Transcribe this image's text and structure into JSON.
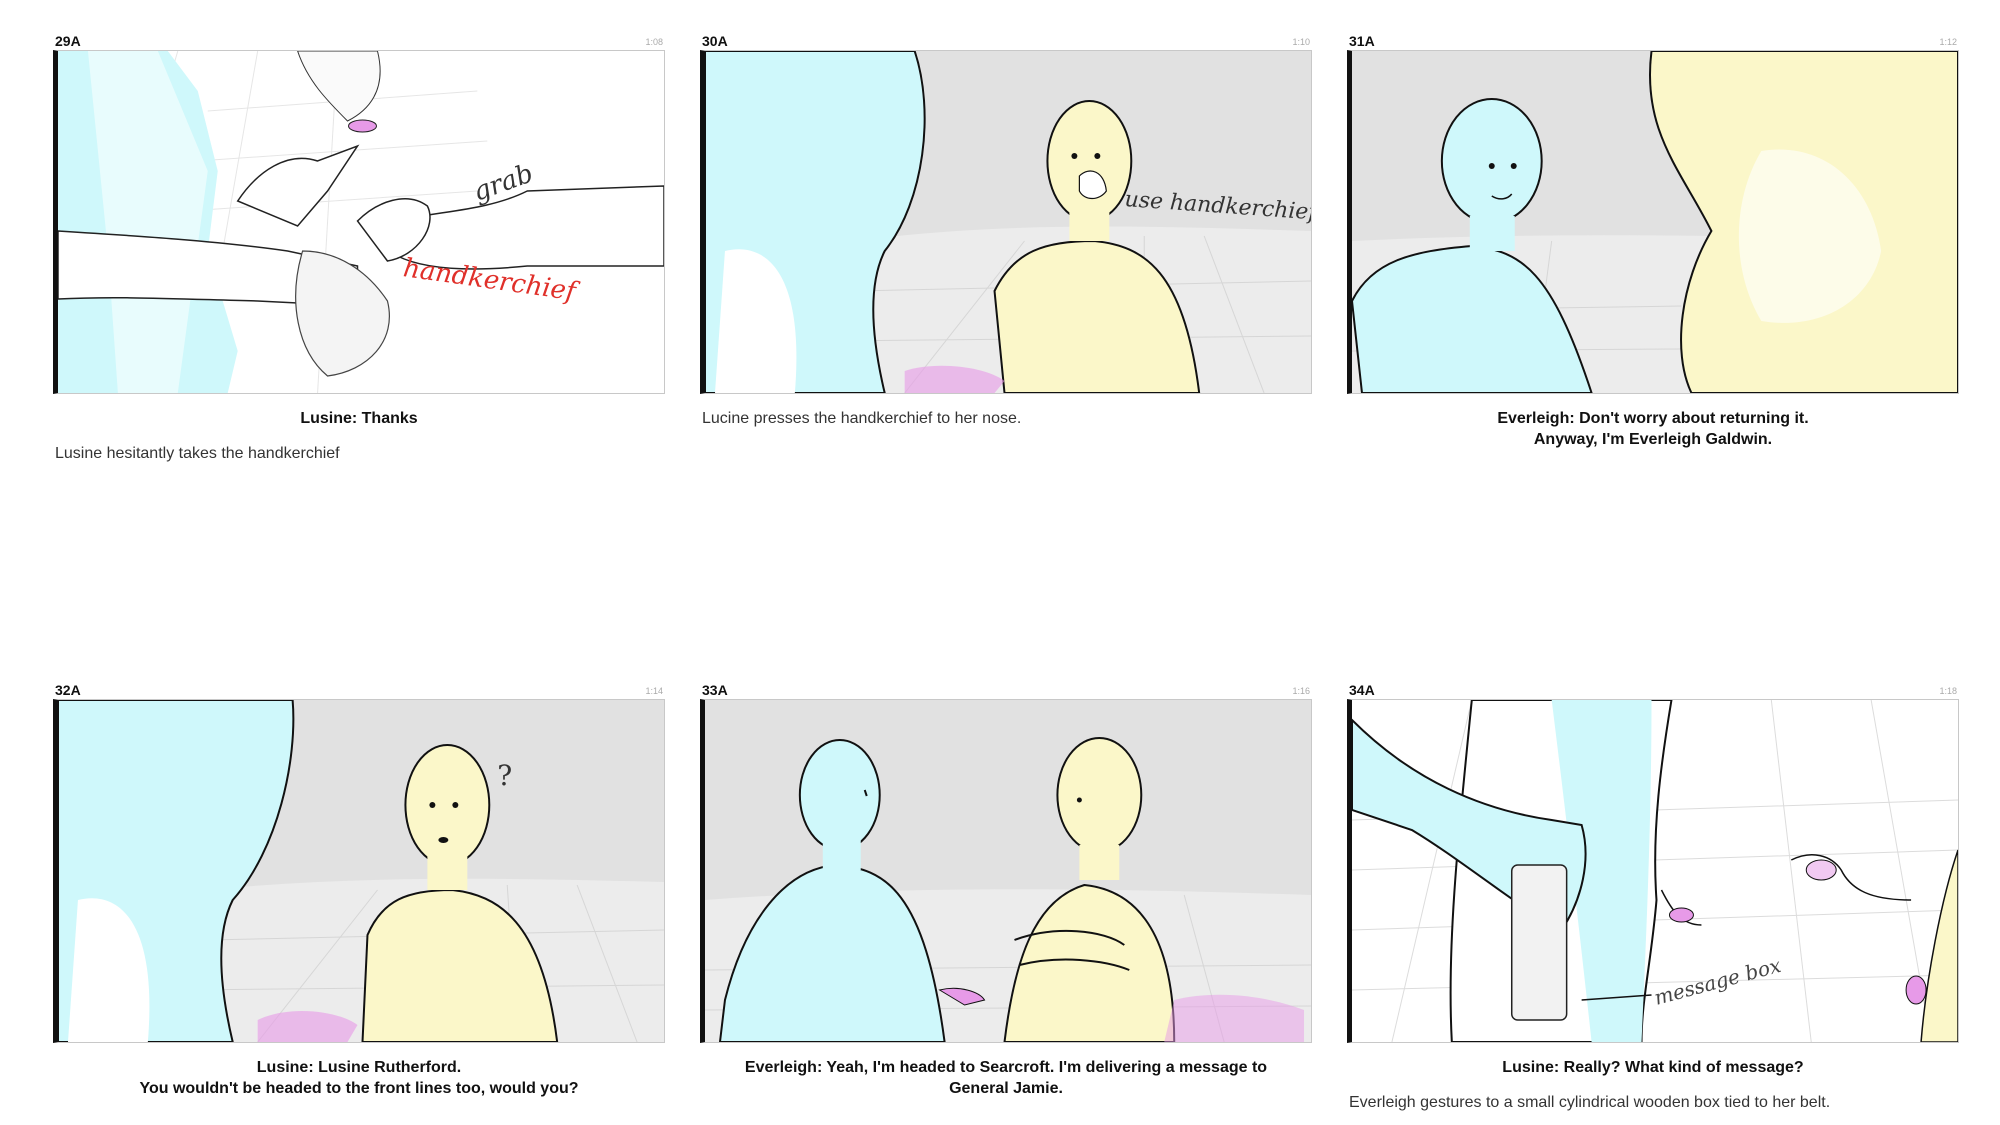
{
  "panels": [
    {
      "shot": "29A",
      "time": "1:08",
      "dialogue": "Lusine: Thanks",
      "action": "Lusine hesitantly takes the handkerchief",
      "sketch_text": [
        "grab",
        "handkerchief"
      ]
    },
    {
      "shot": "30A",
      "time": "1:10",
      "dialogue": "",
      "action": "Lucine presses the handkerchief to her nose.",
      "sketch_text": [
        "use handkerchief"
      ]
    },
    {
      "shot": "31A",
      "time": "1:12",
      "dialogue": "Everleigh: Don't worry about returning it.\nAnyway, I'm Everleigh Galdwin.",
      "action": "",
      "sketch_text": []
    },
    {
      "shot": "32A",
      "time": "1:14",
      "dialogue": "Lusine: Lusine Rutherford.\nYou wouldn't be headed to the front lines too, would you?",
      "action": "",
      "sketch_text": [
        "?"
      ]
    },
    {
      "shot": "33A",
      "time": "1:16",
      "dialogue": "Everleigh: Yeah, I'm headed to Searcroft. I'm delivering a message to\nGeneral Jamie.",
      "action": "",
      "sketch_text": []
    },
    {
      "shot": "34A",
      "time": "1:18",
      "dialogue": "Lusine: Really? What kind of message?",
      "action": "Everleigh gestures to a small cylindrical wooden box tied to her belt.",
      "sketch_text": [
        "message box"
      ]
    }
  ],
  "colors": {
    "cyan_figure": "#cff8fb",
    "yellow_figure": "#fbf7c9",
    "pink_accent": "#e79ae8",
    "red_note": "#e0302a",
    "floor": "#ececec",
    "wall": "#e1e1e1"
  }
}
